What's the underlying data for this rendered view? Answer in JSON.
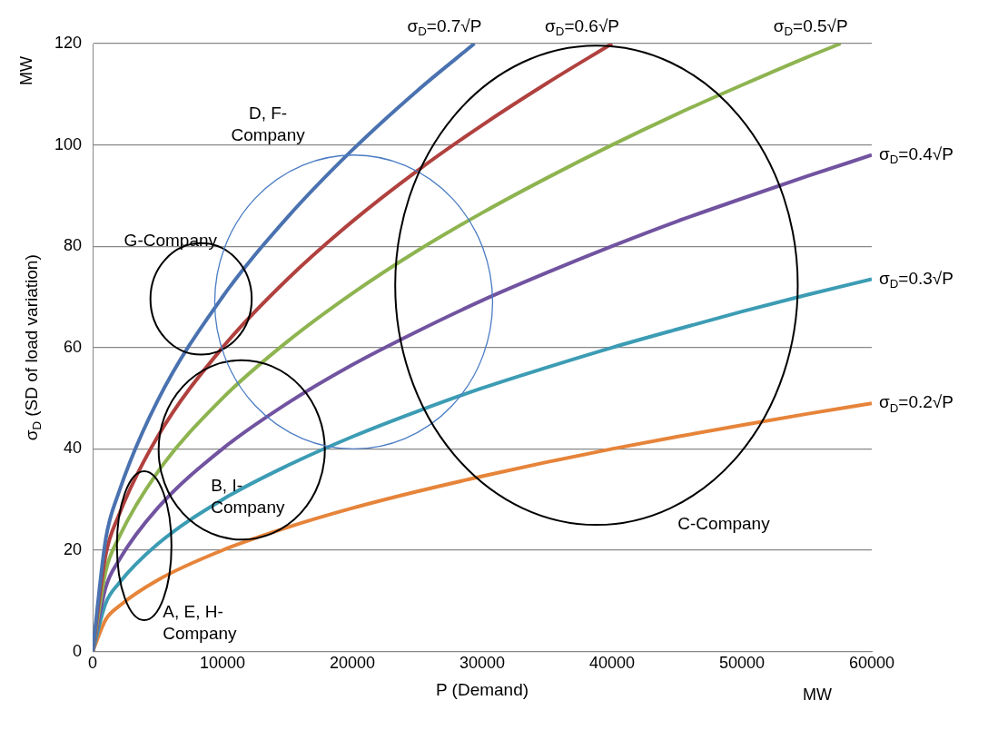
{
  "chart_data": {
    "type": "line",
    "xlabel": "P (Demand)",
    "ylabel": "σ$_{D}$ (SD of load variation)",
    "xlim": [
      0,
      60000
    ],
    "xticks": [
      0,
      10000,
      20000,
      30000,
      40000,
      50000,
      60000
    ],
    "ylim": [
      0,
      120
    ],
    "yticks": [
      0,
      20,
      40,
      60,
      80,
      100,
      120
    ],
    "grid": "y",
    "legend": false,
    "marker": "none",
    "line_style": "solid",
    "annotations": [
      "MW",
      "MW",
      "D, F-Company",
      "G-Company",
      "B, I-Company",
      "A, E, H-Company",
      "C-Company"
    ],
    "series": [
      {
        "name": "σ$_{D}$=0.7√P",
        "color": "#4a72b0",
        "x": [
          0,
          1000,
          2000,
          5000,
          10000,
          15000,
          20000,
          25000,
          29400
        ],
        "values": [
          0,
          22.1,
          31.3,
          49.5,
          70,
          85.7,
          99,
          110.7,
          120
        ]
      },
      {
        "name": "σ$_{D}$=0.6√P",
        "color": "#b0413e",
        "x": [
          0,
          1000,
          2000,
          5000,
          10000,
          15000,
          20000,
          25000,
          30000,
          35000,
          40000
        ],
        "values": [
          0,
          19,
          26.8,
          42.4,
          60,
          73.5,
          84.9,
          94.9,
          103.9,
          112.2,
          120
        ]
      },
      {
        "name": "σ$_{D}$=0.5√P",
        "color": "#8eb450",
        "x": [
          0,
          1000,
          2000,
          5000,
          10000,
          15000,
          20000,
          25000,
          30000,
          35000,
          40000,
          45000,
          50000,
          55000,
          57600
        ],
        "values": [
          0,
          15.8,
          22.4,
          35.4,
          50,
          61.2,
          70.7,
          79.1,
          86.6,
          93.5,
          100,
          106.1,
          111.8,
          117.3,
          120
        ]
      },
      {
        "name": "σ$_{D}$=0.4√P",
        "color": "#7153a0",
        "x": [
          0,
          1000,
          2000,
          5000,
          10000,
          15000,
          20000,
          25000,
          30000,
          35000,
          40000,
          45000,
          50000,
          55000,
          60000
        ],
        "values": [
          0,
          12.6,
          17.9,
          28.3,
          40,
          49,
          56.6,
          63.2,
          69.3,
          74.8,
          80,
          84.9,
          89.4,
          93.8,
          98
        ]
      },
      {
        "name": "σ$_{D}$=0.3√P",
        "color": "#3c9cb4",
        "x": [
          0,
          1000,
          2000,
          5000,
          10000,
          15000,
          20000,
          25000,
          30000,
          35000,
          40000,
          45000,
          50000,
          55000,
          60000
        ],
        "values": [
          0,
          9.5,
          13.4,
          21.2,
          30,
          36.7,
          42.4,
          47.4,
          52,
          56.1,
          60,
          63.6,
          67.1,
          70.4,
          73.5
        ]
      },
      {
        "name": "σ$_{D}$=0.2√P",
        "color": "#e6843a",
        "x": [
          0,
          1000,
          2000,
          5000,
          10000,
          15000,
          20000,
          25000,
          30000,
          35000,
          40000,
          45000,
          50000,
          55000,
          60000
        ],
        "values": [
          0,
          6.3,
          8.9,
          14.1,
          20,
          24.5,
          28.3,
          31.6,
          34.6,
          37.4,
          40,
          42.4,
          44.7,
          46.9,
          49
        ]
      }
    ]
  }
}
